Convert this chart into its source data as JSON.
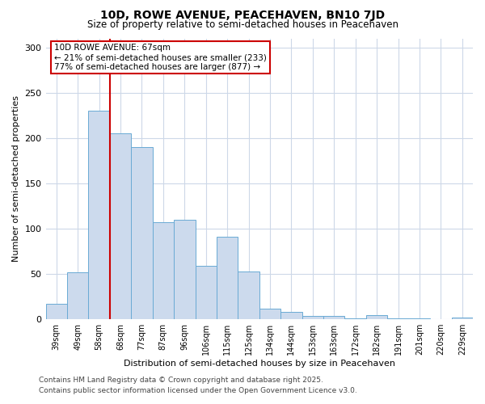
{
  "title": "10D, ROWE AVENUE, PEACEHAVEN, BN10 7JD",
  "subtitle": "Size of property relative to semi-detached houses in Peacehaven",
  "xlabel": "Distribution of semi-detached houses by size in Peacehaven",
  "ylabel": "Number of semi-detached properties",
  "bin_labels": [
    "39sqm",
    "49sqm",
    "58sqm",
    "68sqm",
    "77sqm",
    "87sqm",
    "96sqm",
    "106sqm",
    "115sqm",
    "125sqm",
    "134sqm",
    "144sqm",
    "153sqm",
    "163sqm",
    "172sqm",
    "182sqm",
    "191sqm",
    "201sqm",
    "220sqm",
    "229sqm"
  ],
  "bin_values": [
    17,
    52,
    230,
    205,
    190,
    107,
    110,
    59,
    91,
    53,
    12,
    8,
    4,
    4,
    1,
    5,
    1,
    1,
    0,
    2
  ],
  "bar_color": "#ccdaed",
  "bar_edge_color": "#6aaad4",
  "vline_bin_index": 3,
  "annotation_title": "10D ROWE AVENUE: 67sqm",
  "annotation_line1": "← 21% of semi-detached houses are smaller (233)",
  "annotation_line2": "77% of semi-detached houses are larger (877) →",
  "annotation_box_facecolor": "#ffffff",
  "annotation_box_edgecolor": "#cc0000",
  "vline_color": "#cc0000",
  "ylim": [
    0,
    310
  ],
  "yticks": [
    0,
    50,
    100,
    150,
    200,
    250,
    300
  ],
  "footer_line1": "Contains HM Land Registry data © Crown copyright and database right 2025.",
  "footer_line2": "Contains public sector information licensed under the Open Government Licence v3.0.",
  "bg_color": "#ffffff",
  "grid_color": "#cdd8e8",
  "title_fontsize": 10,
  "subtitle_fontsize": 8.5,
  "tick_fontsize": 7,
  "label_fontsize": 8,
  "annotation_fontsize": 7.5,
  "footer_fontsize": 6.5
}
